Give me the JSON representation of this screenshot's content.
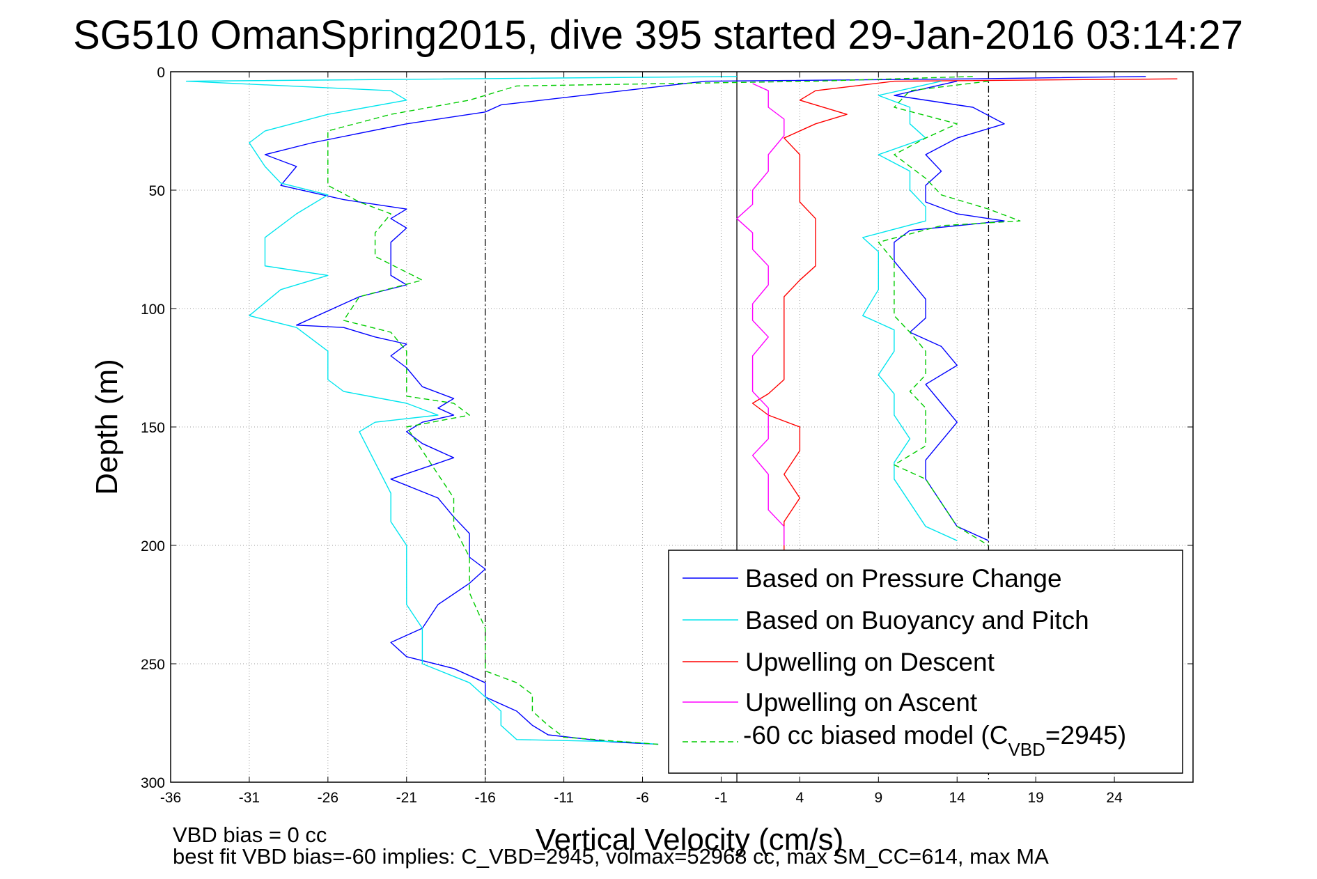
{
  "chart_data": {
    "type": "line",
    "title": "SG510 OmanSpring2015, dive 395 started 29-Jan-2016 03:14:27",
    "xlabel": "Vertical Velocity (cm/s)",
    "ylabel": "Depth (m)",
    "xlim": [
      -36,
      29
    ],
    "ylim": [
      0,
      300
    ],
    "y_reversed": true,
    "grid": true,
    "xticks": [
      -36,
      -31,
      -26,
      -21,
      -16,
      -11,
      -6,
      -1,
      4,
      9,
      14,
      19,
      24
    ],
    "yticks": [
      0,
      50,
      100,
      150,
      200,
      250,
      300
    ],
    "reference_lines_x": [
      {
        "x": -16,
        "style": "dash-dot",
        "color": "#000000"
      },
      {
        "x": 0,
        "style": "solid",
        "color": "#000000"
      },
      {
        "x": 16,
        "style": "dash-dot",
        "color": "#000000"
      }
    ],
    "legend_position": "bottom-right",
    "series": [
      {
        "name": "Based on Pressure Change",
        "color": "#0000ff",
        "dash": "solid",
        "points": [
          [
            26,
            2
          ],
          [
            15,
            3
          ],
          [
            -2,
            4
          ],
          [
            -15,
            14
          ],
          [
            -16,
            17
          ],
          [
            -21,
            22
          ],
          [
            -27,
            30
          ],
          [
            -30,
            35
          ],
          [
            -28,
            40
          ],
          [
            -29,
            48
          ],
          [
            -25,
            54
          ],
          [
            -21,
            58
          ],
          [
            -22,
            62
          ],
          [
            -21,
            66
          ],
          [
            -22,
            72
          ],
          [
            -22,
            80
          ],
          [
            -22,
            86
          ],
          [
            -21,
            90
          ],
          [
            -24,
            95
          ],
          [
            -28,
            107
          ],
          [
            -25,
            108
          ],
          [
            -23,
            112
          ],
          [
            -21,
            115
          ],
          [
            -22,
            120
          ],
          [
            -21,
            125
          ],
          [
            -20,
            133
          ],
          [
            -18,
            138
          ],
          [
            -19,
            142
          ],
          [
            -18,
            145
          ],
          [
            -20,
            148
          ],
          [
            -21,
            152
          ],
          [
            -20,
            157
          ],
          [
            -18,
            163
          ],
          [
            -22,
            172
          ],
          [
            -19,
            180
          ],
          [
            -18,
            188
          ],
          [
            -17,
            195
          ],
          [
            -17,
            205
          ],
          [
            -16,
            210
          ],
          [
            -17,
            216
          ],
          [
            -19,
            225
          ],
          [
            -20,
            235
          ],
          [
            -22,
            241
          ],
          [
            -21,
            247
          ],
          [
            -18,
            252
          ],
          [
            -16,
            258
          ],
          [
            -16,
            264
          ],
          [
            -14,
            270
          ],
          [
            -13,
            276
          ],
          [
            -12,
            280
          ],
          [
            -8,
            283
          ],
          [
            -5,
            284
          ]
        ]
      },
      {
        "name": "Based on Buoyancy and Pitch",
        "color": "#00e5ee",
        "dash": "solid",
        "points": [
          [
            0,
            2
          ],
          [
            -35,
            4
          ],
          [
            -22,
            8
          ],
          [
            -21,
            12
          ],
          [
            -26,
            18
          ],
          [
            -30,
            25
          ],
          [
            -31,
            30
          ],
          [
            -30,
            40
          ],
          [
            -29,
            47
          ],
          [
            -26,
            52
          ],
          [
            -28,
            60
          ],
          [
            -30,
            70
          ],
          [
            -30,
            82
          ],
          [
            -26,
            86
          ],
          [
            -29,
            92
          ],
          [
            -31,
            103
          ],
          [
            -28,
            108
          ],
          [
            -26,
            118
          ],
          [
            -26,
            130
          ],
          [
            -25,
            135
          ],
          [
            -21,
            140
          ],
          [
            -19,
            145
          ],
          [
            -23,
            148
          ],
          [
            -24,
            152
          ],
          [
            -23,
            165
          ],
          [
            -22,
            178
          ],
          [
            -22,
            190
          ],
          [
            -21,
            200
          ],
          [
            -21,
            215
          ],
          [
            -21,
            225
          ],
          [
            -20,
            235
          ],
          [
            -20,
            250
          ],
          [
            -17,
            258
          ],
          [
            -16,
            264
          ],
          [
            -15,
            270
          ],
          [
            -15,
            276
          ],
          [
            -14,
            282
          ],
          [
            -7,
            283
          ],
          [
            -5,
            284
          ]
        ]
      },
      {
        "name": "Upwelling on Descent",
        "color": "#ff0000",
        "dash": "solid",
        "points": [
          [
            28,
            3
          ],
          [
            10,
            4
          ],
          [
            5,
            8
          ],
          [
            4,
            12
          ],
          [
            7,
            18
          ],
          [
            5,
            22
          ],
          [
            3,
            28
          ],
          [
            4,
            35
          ],
          [
            4,
            42
          ],
          [
            4,
            48
          ],
          [
            4,
            55
          ],
          [
            5,
            62
          ],
          [
            5,
            68
          ],
          [
            5,
            75
          ],
          [
            5,
            82
          ],
          [
            4,
            88
          ],
          [
            3,
            95
          ],
          [
            3,
            100
          ],
          [
            3,
            108
          ],
          [
            3,
            115
          ],
          [
            3,
            122
          ],
          [
            3,
            130
          ],
          [
            2,
            136
          ],
          [
            1,
            140
          ],
          [
            2,
            145
          ],
          [
            4,
            150
          ],
          [
            4,
            155
          ],
          [
            4,
            160
          ],
          [
            3,
            170
          ],
          [
            4,
            180
          ],
          [
            3,
            190
          ],
          [
            3,
            200
          ],
          [
            3,
            202
          ]
        ]
      },
      {
        "name": "Upwelling on Ascent",
        "color": "#ff00ff",
        "dash": "solid",
        "points": [
          [
            1,
            5
          ],
          [
            2,
            8
          ],
          [
            2,
            15
          ],
          [
            3,
            20
          ],
          [
            3,
            27
          ],
          [
            2,
            35
          ],
          [
            2,
            42
          ],
          [
            1,
            50
          ],
          [
            1,
            56
          ],
          [
            0,
            62
          ],
          [
            1,
            68
          ],
          [
            1,
            75
          ],
          [
            2,
            82
          ],
          [
            2,
            90
          ],
          [
            1,
            98
          ],
          [
            1,
            105
          ],
          [
            2,
            112
          ],
          [
            1,
            120
          ],
          [
            1,
            128
          ],
          [
            1,
            135
          ],
          [
            2,
            142
          ],
          [
            2,
            148
          ],
          [
            2,
            155
          ],
          [
            1,
            162
          ],
          [
            2,
            170
          ],
          [
            2,
            178
          ],
          [
            2,
            185
          ],
          [
            3,
            192
          ],
          [
            3,
            200
          ]
        ]
      },
      {
        "name": "-60 cc biased model (C_VBD=2945)",
        "color": "#00cc00",
        "dash": "dashed",
        "points": [
          [
            15,
            2
          ],
          [
            5,
            4
          ],
          [
            -14,
            6
          ],
          [
            -17,
            12
          ],
          [
            -22,
            18
          ],
          [
            -26,
            25
          ],
          [
            -26,
            35
          ],
          [
            -26,
            48
          ],
          [
            -24,
            55
          ],
          [
            -22,
            60
          ],
          [
            -23,
            68
          ],
          [
            -23,
            78
          ],
          [
            -20,
            88
          ],
          [
            -24,
            95
          ],
          [
            -25,
            105
          ],
          [
            -22,
            110
          ],
          [
            -21,
            118
          ],
          [
            -21,
            128
          ],
          [
            -21,
            137
          ],
          [
            -18,
            140
          ],
          [
            -17,
            145
          ],
          [
            -21,
            150
          ],
          [
            -20,
            160
          ],
          [
            -19,
            170
          ],
          [
            -18,
            180
          ],
          [
            -18,
            192
          ],
          [
            -17,
            205
          ],
          [
            -17,
            220
          ],
          [
            -16,
            235
          ],
          [
            -16,
            245
          ],
          [
            -16,
            253
          ],
          [
            -14,
            258
          ],
          [
            -13,
            263
          ],
          [
            -13,
            270
          ],
          [
            -12,
            276
          ],
          [
            -11,
            281
          ],
          [
            -5,
            284
          ]
        ]
      }
    ],
    "green_ascent_points": [
      [
        16,
        4
      ],
      [
        11,
        8
      ],
      [
        10,
        15
      ],
      [
        14,
        22
      ],
      [
        12,
        28
      ],
      [
        10,
        35
      ],
      [
        12,
        45
      ],
      [
        13,
        52
      ],
      [
        16,
        58
      ],
      [
        18,
        63
      ],
      [
        13,
        65
      ],
      [
        9,
        72
      ],
      [
        10,
        80
      ],
      [
        10,
        88
      ],
      [
        10,
        95
      ],
      [
        10,
        103
      ],
      [
        11,
        110
      ],
      [
        12,
        118
      ],
      [
        12,
        128
      ],
      [
        11,
        135
      ],
      [
        12,
        142
      ],
      [
        12,
        150
      ],
      [
        12,
        158
      ],
      [
        10,
        166
      ],
      [
        12,
        172
      ],
      [
        13,
        182
      ],
      [
        14,
        192
      ],
      [
        16,
        200
      ]
    ],
    "blue_ascent_points": [
      [
        14,
        4
      ],
      [
        10,
        10
      ],
      [
        15,
        15
      ],
      [
        17,
        22
      ],
      [
        14,
        28
      ],
      [
        12,
        35
      ],
      [
        13,
        42
      ],
      [
        12,
        48
      ],
      [
        12,
        55
      ],
      [
        14,
        60
      ],
      [
        17,
        63
      ],
      [
        11,
        67
      ],
      [
        10,
        72
      ],
      [
        10,
        80
      ],
      [
        11,
        88
      ],
      [
        12,
        96
      ],
      [
        12,
        104
      ],
      [
        11,
        110
      ],
      [
        13,
        116
      ],
      [
        14,
        124
      ],
      [
        12,
        132
      ],
      [
        13,
        140
      ],
      [
        14,
        148
      ],
      [
        13,
        156
      ],
      [
        12,
        164
      ],
      [
        12,
        172
      ],
      [
        13,
        182
      ],
      [
        14,
        192
      ],
      [
        16,
        198
      ]
    ],
    "cyan_ascent_points": [
      [
        13,
        4
      ],
      [
        9,
        10
      ],
      [
        11,
        15
      ],
      [
        11,
        22
      ],
      [
        12,
        28
      ],
      [
        9,
        35
      ],
      [
        11,
        42
      ],
      [
        11,
        50
      ],
      [
        12,
        57
      ],
      [
        12,
        63
      ],
      [
        8,
        70
      ],
      [
        9,
        76
      ],
      [
        9,
        83
      ],
      [
        9,
        92
      ],
      [
        8,
        103
      ],
      [
        10,
        109
      ],
      [
        10,
        118
      ],
      [
        9,
        128
      ],
      [
        10,
        136
      ],
      [
        10,
        145
      ],
      [
        11,
        155
      ],
      [
        10,
        165
      ],
      [
        10,
        172
      ],
      [
        11,
        182
      ],
      [
        12,
        192
      ],
      [
        14,
        198
      ]
    ],
    "legend": {
      "items": [
        "Based on Pressure Change",
        "Based on Buoyancy and Pitch",
        "Upwelling on Descent",
        "Upwelling on Ascent"
      ],
      "model_prefix": "-60 cc biased model (C",
      "model_sub": "VBD",
      "model_suffix": "=2945)"
    },
    "annotations": [
      "VBD bias = 0 cc",
      "best fit VBD bias=-60 implies: C_VBD=2945, volmax=52968 cc, max SM_CC=614, max MA"
    ]
  }
}
